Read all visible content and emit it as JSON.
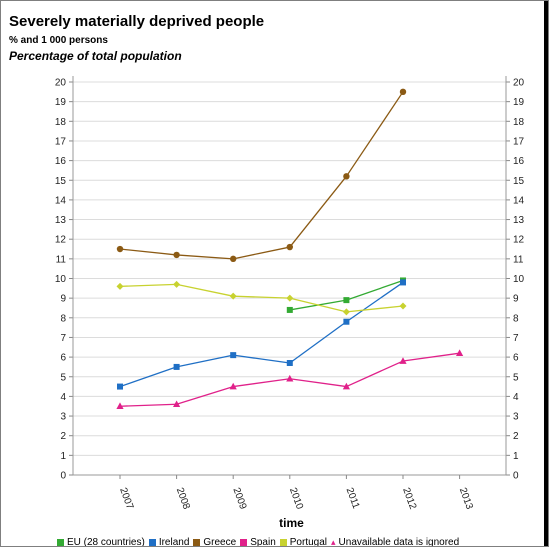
{
  "page": {
    "title": "Severely materially deprived people",
    "subtitle": "% and 1 000 persons",
    "unit": "Percentage of total population"
  },
  "chart_data": {
    "type": "line",
    "title": "Severely materially deprived people",
    "xlabel": "time",
    "ylabel": "",
    "categories": [
      "2007",
      "2008",
      "2009",
      "2010",
      "2011",
      "2012",
      "2013"
    ],
    "ylim": [
      0,
      20
    ],
    "yticks": [
      "0",
      "1",
      "2",
      "3",
      "4",
      "5",
      "6",
      "7",
      "8",
      "9",
      "10",
      "11",
      "12",
      "13",
      "14",
      "15",
      "16",
      "17",
      "18",
      "19",
      "20"
    ],
    "grid": true,
    "legend": "bottom",
    "series": [
      {
        "name": "EU (28 countries)",
        "color": "#33aa33",
        "marker": "square",
        "values": [
          null,
          null,
          null,
          8.4,
          8.9,
          9.9,
          null
        ]
      },
      {
        "name": "Ireland",
        "color": "#1f6fc5",
        "marker": "square",
        "values": [
          4.5,
          5.5,
          6.1,
          5.7,
          7.8,
          9.8,
          null
        ]
      },
      {
        "name": "Greece",
        "color": "#8b5a14",
        "marker": "circle",
        "values": [
          11.5,
          11.2,
          11.0,
          11.6,
          15.2,
          19.5,
          null
        ]
      },
      {
        "name": "Spain",
        "color": "#e0218a",
        "marker": "triangle",
        "values": [
          3.5,
          3.6,
          4.5,
          4.9,
          4.5,
          5.8,
          6.2
        ]
      },
      {
        "name": "Portugal",
        "color": "#c8d230",
        "marker": "diamond",
        "values": [
          9.6,
          9.7,
          9.1,
          9.0,
          8.3,
          8.6,
          null
        ]
      }
    ],
    "note": "Unavailable data is ignored"
  }
}
